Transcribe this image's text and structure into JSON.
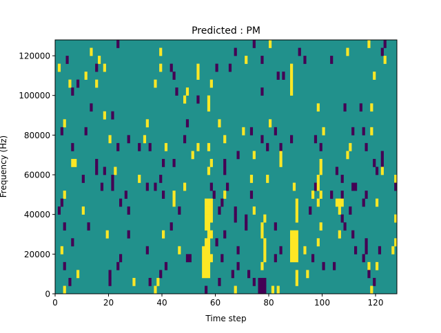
{
  "chart_data": {
    "type": "heatmap",
    "title": "Predicted : PM",
    "xlabel": "Time step",
    "ylabel": "Frequency (Hz)",
    "xlim": [
      0,
      128
    ],
    "ylim": [
      0,
      128000
    ],
    "n_time_steps": 128,
    "n_freq_bins": 32,
    "bin_hz": 4000,
    "xticks": [
      0,
      20,
      40,
      60,
      80,
      100,
      120
    ],
    "xtick_labels": [
      "0",
      "20",
      "40",
      "60",
      "80",
      "100",
      "120"
    ],
    "yticks": [
      0,
      20000,
      40000,
      60000,
      80000,
      100000,
      120000
    ],
    "ytick_labels": [
      "0",
      "20000",
      "40000",
      "60000",
      "80000",
      "100000",
      "120000"
    ],
    "colormap": {
      "background_value": 0,
      "low": "#440154",
      "mid": "#21918c",
      "high": "#fde725"
    },
    "cells_format": "[time_step, freq_bin, value(-1 low / 1 high), run_length]",
    "cells": [
      [
        23,
        31,
        -1,
        1
      ],
      [
        74,
        31,
        -1,
        1
      ],
      [
        80,
        31,
        1,
        1
      ],
      [
        117,
        31,
        1,
        1
      ],
      [
        123,
        31,
        -1,
        1
      ],
      [
        13,
        30,
        1,
        1
      ],
      [
        39,
        30,
        1,
        1
      ],
      [
        67,
        30,
        -1,
        1
      ],
      [
        91,
        30,
        -1,
        1
      ],
      [
        109,
        30,
        1,
        1
      ],
      [
        122,
        30,
        -1,
        1
      ],
      [
        4,
        29,
        -1,
        1
      ],
      [
        16,
        29,
        1,
        1
      ],
      [
        71,
        29,
        1,
        1
      ],
      [
        77,
        29,
        -1,
        1
      ],
      [
        93,
        29,
        -1,
        1
      ],
      [
        103,
        29,
        -1,
        1
      ],
      [
        123,
        29,
        1,
        1
      ],
      [
        1,
        28,
        1,
        1
      ],
      [
        15,
        28,
        -1,
        1
      ],
      [
        18,
        28,
        1,
        1
      ],
      [
        39,
        28,
        1,
        1
      ],
      [
        43,
        28,
        -1,
        1
      ],
      [
        53,
        28,
        1,
        1
      ],
      [
        60,
        28,
        -1,
        1
      ],
      [
        65,
        28,
        -1,
        1
      ],
      [
        88,
        28,
        1,
        1
      ],
      [
        11,
        27,
        1,
        1
      ],
      [
        44,
        27,
        -1,
        1
      ],
      [
        53,
        27,
        1,
        1
      ],
      [
        83,
        27,
        -1,
        1
      ],
      [
        85,
        27,
        -1,
        1
      ],
      [
        88,
        27,
        1,
        1
      ],
      [
        119,
        27,
        1,
        1
      ],
      [
        5,
        26,
        1,
        1
      ],
      [
        8,
        26,
        -1,
        1
      ],
      [
        15,
        26,
        1,
        1
      ],
      [
        37,
        26,
        1,
        1
      ],
      [
        58,
        26,
        1,
        1
      ],
      [
        88,
        26,
        1,
        1
      ],
      [
        6,
        25,
        -1,
        1
      ],
      [
        45,
        25,
        -1,
        1
      ],
      [
        49,
        25,
        1,
        1
      ],
      [
        77,
        25,
        -1,
        1
      ],
      [
        88,
        25,
        1,
        1
      ],
      [
        48,
        24,
        1,
        1
      ],
      [
        53,
        24,
        -1,
        1
      ],
      [
        57,
        24,
        1,
        1
      ],
      [
        13,
        23,
        -1,
        1
      ],
      [
        57,
        23,
        1,
        1
      ],
      [
        98,
        23,
        1,
        1
      ],
      [
        108,
        23,
        -1,
        1
      ],
      [
        114,
        23,
        -1,
        1
      ],
      [
        118,
        23,
        1,
        1
      ],
      [
        18,
        22,
        1,
        1
      ],
      [
        21,
        22,
        -1,
        1
      ],
      [
        3,
        21,
        1,
        1
      ],
      [
        34,
        21,
        1,
        1
      ],
      [
        49,
        21,
        -1,
        1
      ],
      [
        61,
        21,
        1,
        1
      ],
      [
        80,
        21,
        1,
        1
      ],
      [
        2,
        20,
        -1,
        1
      ],
      [
        11,
        20,
        -1,
        1
      ],
      [
        70,
        20,
        1,
        1
      ],
      [
        73,
        20,
        -1,
        1
      ],
      [
        82,
        20,
        -1,
        1
      ],
      [
        100,
        20,
        1,
        1
      ],
      [
        111,
        20,
        -1,
        1
      ],
      [
        115,
        20,
        -1,
        1
      ],
      [
        118,
        20,
        1,
        1
      ],
      [
        20,
        19,
        1,
        1
      ],
      [
        27,
        19,
        -1,
        1
      ],
      [
        33,
        19,
        1,
        1
      ],
      [
        48,
        19,
        -1,
        1
      ],
      [
        63,
        19,
        1,
        1
      ],
      [
        77,
        19,
        -1,
        1
      ],
      [
        88,
        19,
        -1,
        1
      ],
      [
        97,
        19,
        -1,
        1
      ],
      [
        6,
        18,
        -1,
        1
      ],
      [
        23,
        18,
        -1,
        1
      ],
      [
        31,
        18,
        -1,
        1
      ],
      [
        35,
        18,
        -1,
        1
      ],
      [
        41,
        18,
        1,
        1
      ],
      [
        53,
        18,
        1,
        1
      ],
      [
        57,
        18,
        1,
        1
      ],
      [
        79,
        18,
        -1,
        1
      ],
      [
        84,
        18,
        -1,
        1
      ],
      [
        99,
        18,
        -1,
        1
      ],
      [
        110,
        18,
        1,
        1
      ],
      [
        116,
        18,
        -1,
        1
      ],
      [
        51,
        17,
        1,
        1
      ],
      [
        68,
        17,
        -1,
        1
      ],
      [
        74,
        17,
        1,
        1
      ],
      [
        84,
        17,
        1,
        1
      ],
      [
        109,
        17,
        1,
        1
      ],
      [
        122,
        17,
        -1,
        1
      ],
      [
        6,
        16,
        1,
        2
      ],
      [
        15,
        16,
        -1,
        1
      ],
      [
        40,
        16,
        -1,
        1
      ],
      [
        44,
        16,
        -1,
        1
      ],
      [
        58,
        16,
        1,
        1
      ],
      [
        63,
        16,
        -1,
        1
      ],
      [
        84,
        16,
        1,
        1
      ],
      [
        99,
        16,
        1,
        1
      ],
      [
        119,
        16,
        -1,
        1
      ],
      [
        122,
        16,
        -1,
        1
      ],
      [
        15,
        15,
        -1,
        1
      ],
      [
        18,
        15,
        -1,
        1
      ],
      [
        22,
        15,
        1,
        1
      ],
      [
        57,
        15,
        1,
        1
      ],
      [
        63,
        15,
        -1,
        1
      ],
      [
        99,
        15,
        1,
        1
      ],
      [
        105,
        15,
        -1,
        1
      ],
      [
        120,
        15,
        -1,
        1
      ],
      [
        122,
        15,
        1,
        1
      ],
      [
        10,
        14,
        -1,
        1
      ],
      [
        21,
        14,
        -1,
        1
      ],
      [
        31,
        14,
        1,
        1
      ],
      [
        39,
        14,
        -1,
        1
      ],
      [
        73,
        14,
        1,
        1
      ],
      [
        79,
        14,
        1,
        1
      ],
      [
        98,
        14,
        1,
        1
      ],
      [
        107,
        14,
        -1,
        1
      ],
      [
        127,
        14,
        1,
        1
      ],
      [
        17,
        13,
        -1,
        1
      ],
      [
        21,
        13,
        -1,
        1
      ],
      [
        34,
        13,
        -1,
        1
      ],
      [
        37,
        13,
        -1,
        1
      ],
      [
        48,
        13,
        1,
        1
      ],
      [
        58,
        13,
        -1,
        1
      ],
      [
        64,
        13,
        -1,
        1
      ],
      [
        89,
        13,
        1,
        1
      ],
      [
        97,
        13,
        -1,
        1
      ],
      [
        98,
        13,
        1,
        1
      ],
      [
        111,
        13,
        -1,
        2
      ],
      [
        127,
        13,
        -1,
        1
      ],
      [
        3,
        12,
        1,
        1
      ],
      [
        26,
        12,
        -1,
        1
      ],
      [
        40,
        12,
        -1,
        1
      ],
      [
        44,
        12,
        1,
        1
      ],
      [
        59,
        12,
        -1,
        1
      ],
      [
        63,
        12,
        1,
        1
      ],
      [
        73,
        12,
        -1,
        1
      ],
      [
        96,
        12,
        1,
        1
      ],
      [
        99,
        12,
        1,
        1
      ],
      [
        103,
        12,
        -1,
        1
      ],
      [
        107,
        12,
        -1,
        1
      ],
      [
        116,
        12,
        -1,
        1
      ],
      [
        2,
        11,
        -1,
        1
      ],
      [
        24,
        11,
        -1,
        1
      ],
      [
        44,
        11,
        1,
        1
      ],
      [
        56,
        11,
        1,
        3
      ],
      [
        62,
        11,
        -1,
        1
      ],
      [
        90,
        11,
        1,
        1
      ],
      [
        98,
        11,
        1,
        1
      ],
      [
        105,
        11,
        1,
        3
      ],
      [
        115,
        11,
        -1,
        1
      ],
      [
        120,
        11,
        1,
        1
      ],
      [
        1,
        10,
        -1,
        1
      ],
      [
        10,
        10,
        1,
        1
      ],
      [
        27,
        10,
        -1,
        1
      ],
      [
        46,
        10,
        -1,
        1
      ],
      [
        56,
        10,
        1,
        3
      ],
      [
        61,
        10,
        -1,
        1
      ],
      [
        67,
        10,
        -1,
        1
      ],
      [
        74,
        10,
        1,
        1
      ],
      [
        90,
        10,
        1,
        1
      ],
      [
        95,
        10,
        -1,
        1
      ],
      [
        106,
        10,
        1,
        1
      ],
      [
        110,
        10,
        -1,
        1
      ],
      [
        56,
        9,
        1,
        3
      ],
      [
        67,
        9,
        -1,
        1
      ],
      [
        71,
        9,
        -1,
        1
      ],
      [
        78,
        9,
        1,
        1
      ],
      [
        90,
        9,
        1,
        1
      ],
      [
        107,
        9,
        -1,
        1
      ],
      [
        127,
        9,
        1,
        1
      ],
      [
        3,
        8,
        -1,
        1
      ],
      [
        12,
        8,
        -1,
        1
      ],
      [
        43,
        8,
        -1,
        1
      ],
      [
        56,
        8,
        1,
        2
      ],
      [
        71,
        8,
        -1,
        1
      ],
      [
        77,
        8,
        1,
        1
      ],
      [
        82,
        8,
        -1,
        1
      ],
      [
        99,
        8,
        1,
        1
      ],
      [
        108,
        8,
        -1,
        1
      ],
      [
        19,
        7,
        1,
        1
      ],
      [
        27,
        7,
        -1,
        1
      ],
      [
        40,
        7,
        1,
        1
      ],
      [
        57,
        7,
        1,
        2
      ],
      [
        63,
        7,
        -1,
        1
      ],
      [
        77,
        7,
        1,
        1
      ],
      [
        88,
        7,
        1,
        3
      ],
      [
        106,
        7,
        1,
        1
      ],
      [
        111,
        7,
        -1,
        1
      ],
      [
        6,
        6,
        -1,
        1
      ],
      [
        56,
        6,
        1,
        2
      ],
      [
        60,
        6,
        -1,
        1
      ],
      [
        78,
        6,
        1,
        1
      ],
      [
        88,
        6,
        1,
        3
      ],
      [
        98,
        6,
        1,
        1
      ],
      [
        116,
        6,
        -1,
        1
      ],
      [
        127,
        6,
        1,
        1
      ],
      [
        2,
        5,
        1,
        1
      ],
      [
        34,
        5,
        -1,
        1
      ],
      [
        46,
        5,
        1,
        1
      ],
      [
        55,
        5,
        1,
        3
      ],
      [
        68,
        5,
        -1,
        1
      ],
      [
        78,
        5,
        1,
        1
      ],
      [
        84,
        5,
        -1,
        1
      ],
      [
        88,
        5,
        1,
        3
      ],
      [
        93,
        5,
        1,
        1
      ],
      [
        112,
        5,
        -1,
        1
      ],
      [
        116,
        5,
        -1,
        1
      ],
      [
        121,
        5,
        -1,
        1
      ],
      [
        126,
        5,
        1,
        1
      ],
      [
        24,
        4,
        -1,
        1
      ],
      [
        49,
        4,
        -1,
        2
      ],
      [
        55,
        4,
        1,
        4
      ],
      [
        62,
        4,
        -1,
        1
      ],
      [
        78,
        4,
        1,
        1
      ],
      [
        82,
        4,
        -1,
        1
      ],
      [
        88,
        4,
        1,
        3
      ],
      [
        96,
        4,
        -1,
        1
      ],
      [
        115,
        4,
        -1,
        1
      ],
      [
        3,
        3,
        -1,
        1
      ],
      [
        23,
        3,
        -1,
        1
      ],
      [
        41,
        3,
        -1,
        1
      ],
      [
        55,
        3,
        1,
        3
      ],
      [
        68,
        3,
        -1,
        1
      ],
      [
        77,
        3,
        1,
        1
      ],
      [
        100,
        3,
        -1,
        1
      ],
      [
        104,
        3,
        -1,
        1
      ],
      [
        117,
        3,
        1,
        1
      ],
      [
        120,
        3,
        1,
        1
      ],
      [
        8,
        2,
        1,
        1
      ],
      [
        20,
        2,
        -1,
        1
      ],
      [
        39,
        2,
        -1,
        1
      ],
      [
        55,
        2,
        1,
        3
      ],
      [
        66,
        2,
        -1,
        1
      ],
      [
        72,
        2,
        -1,
        1
      ],
      [
        90,
        2,
        1,
        1
      ],
      [
        94,
        2,
        1,
        1
      ],
      [
        117,
        2,
        -1,
        1
      ],
      [
        5,
        1,
        -1,
        1
      ],
      [
        20,
        1,
        -1,
        1
      ],
      [
        29,
        1,
        1,
        1
      ],
      [
        35,
        1,
        -1,
        1
      ],
      [
        38,
        1,
        1,
        1
      ],
      [
        61,
        1,
        -1,
        1
      ],
      [
        74,
        1,
        -1,
        1
      ],
      [
        76,
        1,
        -1,
        3
      ],
      [
        90,
        1,
        1,
        1
      ],
      [
        119,
        1,
        -1,
        1
      ],
      [
        3,
        0,
        1,
        1
      ],
      [
        37,
        0,
        1,
        1
      ],
      [
        56,
        0,
        -1,
        1
      ],
      [
        67,
        0,
        1,
        1
      ],
      [
        76,
        0,
        -1,
        3
      ],
      [
        81,
        0,
        1,
        1
      ],
      [
        83,
        0,
        1,
        1
      ],
      [
        118,
        0,
        1,
        1
      ]
    ]
  }
}
